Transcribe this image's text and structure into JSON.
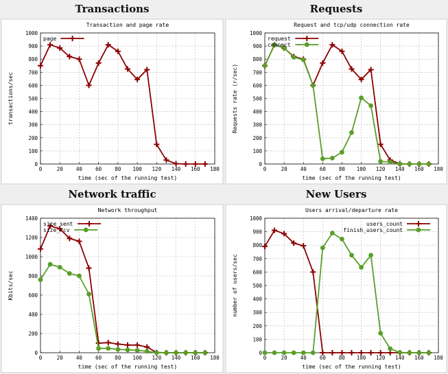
{
  "panels": [
    {
      "title": "Transactions"
    },
    {
      "title": "Requests"
    },
    {
      "title": "Network traffic"
    },
    {
      "title": "New Users"
    }
  ],
  "chart_data": [
    {
      "type": "line",
      "title": "Transaction and page rate",
      "xlabel": "time (sec of the running test)",
      "ylabel": "transactions/sec",
      "xlim": [
        0,
        180
      ],
      "ylim": [
        0,
        1000
      ],
      "xticks": [
        0,
        20,
        40,
        60,
        80,
        100,
        120,
        140,
        160,
        180
      ],
      "yticks": [
        0,
        100,
        200,
        300,
        400,
        500,
        600,
        700,
        800,
        900,
        1000
      ],
      "grid": true,
      "legend_position": "top-left",
      "x": [
        0,
        10,
        20,
        30,
        40,
        50,
        60,
        70,
        80,
        90,
        100,
        110,
        120,
        130,
        140,
        150,
        160,
        170
      ],
      "series": [
        {
          "name": "page",
          "color": "#8b0000",
          "marker": "plus",
          "values": [
            750,
            910,
            885,
            820,
            800,
            600,
            770,
            910,
            860,
            725,
            645,
            720,
            150,
            30,
            2,
            0,
            0,
            0
          ]
        }
      ]
    },
    {
      "type": "line",
      "title": "Request and tcp/udp connection rate",
      "xlabel": "time (sec of the running test)",
      "ylabel": "Requests rate (r/sec)",
      "xlim": [
        0,
        180
      ],
      "ylim": [
        0,
        1000
      ],
      "xticks": [
        0,
        20,
        40,
        60,
        80,
        100,
        120,
        140,
        160,
        180
      ],
      "yticks": [
        0,
        100,
        200,
        300,
        400,
        500,
        600,
        700,
        800,
        900,
        1000
      ],
      "grid": true,
      "legend_position": "top-left",
      "x": [
        0,
        10,
        20,
        30,
        40,
        50,
        60,
        70,
        80,
        90,
        100,
        110,
        120,
        130,
        140,
        150,
        160,
        170
      ],
      "series": [
        {
          "name": "request",
          "color": "#8b0000",
          "marker": "plus",
          "values": [
            750,
            910,
            885,
            820,
            800,
            600,
            770,
            910,
            860,
            725,
            645,
            720,
            150,
            30,
            2,
            0,
            0,
            0
          ]
        },
        {
          "name": "connect",
          "color": "#5a9e2a",
          "marker": "dot",
          "values": [
            750,
            910,
            885,
            815,
            795,
            600,
            40,
            45,
            90,
            240,
            505,
            445,
            20,
            15,
            0,
            0,
            0,
            0
          ]
        }
      ]
    },
    {
      "type": "line",
      "title": "Network throughput",
      "xlabel": "time (sec of the running test)",
      "ylabel": "Kbits/sec",
      "xlim": [
        0,
        180
      ],
      "ylim": [
        0,
        1400
      ],
      "xticks": [
        0,
        20,
        40,
        60,
        80,
        100,
        120,
        140,
        160,
        180
      ],
      "yticks": [
        0,
        200,
        400,
        600,
        800,
        1000,
        1200,
        1400
      ],
      "grid": true,
      "legend_position": "top-left",
      "x": [
        0,
        10,
        20,
        30,
        40,
        50,
        60,
        70,
        80,
        90,
        100,
        110,
        120,
        130,
        140,
        150,
        160,
        170
      ],
      "series": [
        {
          "name": "size_sent",
          "color": "#8b0000",
          "marker": "plus",
          "values": [
            1080,
            1320,
            1290,
            1190,
            1160,
            880,
            100,
            105,
            90,
            80,
            80,
            60,
            2,
            0,
            0,
            0,
            0,
            0
          ]
        },
        {
          "name": "size_rcv",
          "color": "#5a9e2a",
          "marker": "dot",
          "values": [
            760,
            920,
            890,
            825,
            800,
            610,
            45,
            45,
            35,
            30,
            25,
            15,
            0,
            0,
            0,
            0,
            0,
            0
          ]
        }
      ]
    },
    {
      "type": "line",
      "title": "Users arrival/departure rate",
      "xlabel": "time (sec of the running test)",
      "ylabel": "number of users/sec",
      "xlim": [
        0,
        180
      ],
      "ylim": [
        0,
        1000
      ],
      "xticks": [
        0,
        20,
        40,
        60,
        80,
        100,
        120,
        140,
        160,
        180
      ],
      "yticks": [
        0,
        100,
        200,
        300,
        400,
        500,
        600,
        700,
        800,
        900,
        1000
      ],
      "grid": true,
      "legend_position": "top-right",
      "x": [
        0,
        10,
        20,
        30,
        40,
        50,
        60,
        70,
        80,
        90,
        100,
        110,
        120,
        130,
        140,
        150,
        160,
        170
      ],
      "series": [
        {
          "name": "users_count",
          "color": "#8b0000",
          "marker": "plus",
          "values": [
            790,
            910,
            885,
            815,
            795,
            600,
            0,
            0,
            0,
            0,
            0,
            0,
            0,
            0,
            0,
            0,
            0,
            0
          ]
        },
        {
          "name": "finish_users_count",
          "color": "#5a9e2a",
          "marker": "dot",
          "values": [
            0,
            0,
            0,
            0,
            0,
            0,
            780,
            890,
            845,
            725,
            635,
            725,
            145,
            30,
            2,
            0,
            0,
            0
          ]
        }
      ]
    }
  ]
}
